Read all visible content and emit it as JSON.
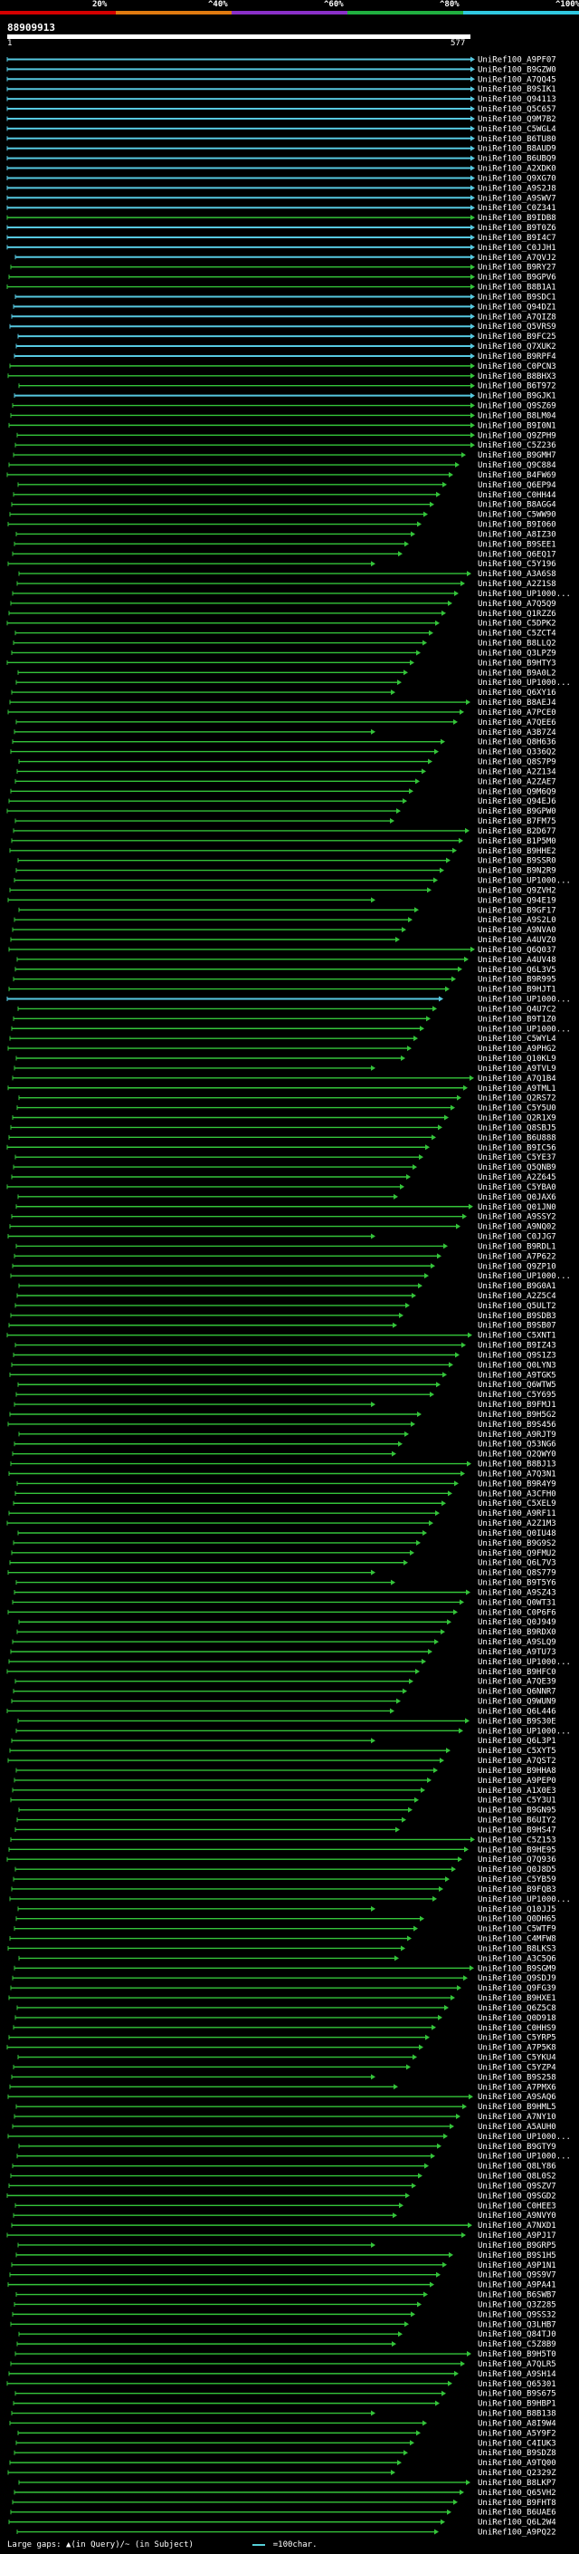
{
  "scale": {
    "labels": [
      "20%",
      "^40%",
      "^60%",
      "^80%",
      "^100%"
    ],
    "colors": [
      "#d40000",
      "#e07a10",
      "#8a30c8",
      "#20b040",
      "#30c8e0"
    ]
  },
  "query": {
    "id": "88909913",
    "start": "1",
    "end": "577"
  },
  "colors": {
    "line": "#34c43a",
    "highlight": "#56c8e0",
    "background": "#000000"
  },
  "hits": [
    {
      "id": "UniRef100_A9PF07",
      "c": 1
    },
    {
      "id": "UniRef100_B9GZW0",
      "c": 1
    },
    {
      "id": "UniRef100_A7QQ45",
      "c": 1
    },
    {
      "id": "UniRef100_B9SIK1",
      "c": 1
    },
    {
      "id": "UniRef100_Q94113",
      "c": 1
    },
    {
      "id": "UniRef100_Q5C657",
      "c": 1
    },
    {
      "id": "UniRef100_Q9M7B2",
      "c": 1
    },
    {
      "id": "UniRef100_C5WGL4",
      "c": 1
    },
    {
      "id": "UniRef100_B6TU80",
      "c": 1
    },
    {
      "id": "UniRef100_B8AUD9",
      "c": 1
    },
    {
      "id": "UniRef100_B6UBQ9",
      "c": 1
    },
    {
      "id": "UniRef100_A2XDK0",
      "c": 1
    },
    {
      "id": "UniRef100_Q9XG70",
      "c": 1
    },
    {
      "id": "UniRef100_A9S2J8",
      "c": 1
    },
    {
      "id": "UniRef100_A9SWV7",
      "c": 1
    },
    {
      "id": "UniRef100_C0Z341",
      "c": 1
    },
    {
      "id": "UniRef100_B9IDB8",
      "c": 0
    },
    {
      "id": "UniRef100_B9T0Z6",
      "c": 1
    },
    {
      "id": "UniRef100_B9I4C7",
      "c": 1
    },
    {
      "id": "UniRef100_C0JJH1",
      "c": 1
    },
    {
      "id": "UniRef100_A7QVJ2",
      "c": 1
    },
    {
      "id": "UniRef100_B9RY27",
      "c": 0
    },
    {
      "id": "UniRef100_B9GPV6",
      "c": 0
    },
    {
      "id": "UniRef100_B8B1A1",
      "c": 0
    },
    {
      "id": "UniRef100_B9SDC1",
      "c": 1
    },
    {
      "id": "UniRef100_Q94DZ1",
      "c": 1
    },
    {
      "id": "UniRef100_A7QIZ8",
      "c": 1
    },
    {
      "id": "UniRef100_Q5VRS9",
      "c": 1
    },
    {
      "id": "UniRef100_B9FC25",
      "c": 1
    },
    {
      "id": "UniRef100_Q7XUK2",
      "c": 1
    },
    {
      "id": "UniRef100_B9RPF4",
      "c": 1
    },
    {
      "id": "UniRef100_C0PCN3",
      "c": 0
    },
    {
      "id": "UniRef100_B8BHX3",
      "c": 0
    },
    {
      "id": "UniRef100_B6T972",
      "c": 0
    },
    {
      "id": "UniRef100_B9GJK1",
      "c": 1
    },
    {
      "id": "UniRef100_Q9SZ69",
      "c": 0
    },
    {
      "id": "UniRef100_B8LM04",
      "c": 0
    },
    {
      "id": "UniRef100_B9I0N1",
      "c": 0
    },
    {
      "id": "UniRef100_Q9ZPH9",
      "c": 0
    },
    {
      "id": "UniRef100_C5Z236",
      "c": 0
    },
    {
      "id": "UniRef100_B9GMH7",
      "c": 0
    },
    {
      "id": "UniRef100_Q9C884",
      "c": 0
    },
    {
      "id": "UniRef100_B4FW69",
      "c": 0
    },
    {
      "id": "UniRef100_Q6EP94",
      "c": 0
    },
    {
      "id": "UniRef100_C0HH44",
      "c": 0
    },
    {
      "id": "UniRef100_B8AGG4",
      "c": 0
    },
    {
      "id": "UniRef100_C5WW90",
      "c": 0
    },
    {
      "id": "UniRef100_B9I060",
      "c": 0
    },
    {
      "id": "UniRef100_A8IZ30",
      "c": 0
    },
    {
      "id": "UniRef100_B9SEE1",
      "c": 0
    },
    {
      "id": "UniRef100_Q6EQ17",
      "c": 0
    },
    {
      "id": "UniRef100_C5Y196",
      "c": 0
    },
    {
      "id": "UniRef100_A3A6S8",
      "c": 0
    },
    {
      "id": "UniRef100_A2Z1S8",
      "c": 0
    },
    {
      "id": "UniRef100_UP1000...",
      "c": 0
    },
    {
      "id": "UniRef100_A7Q5Q9",
      "c": 0
    },
    {
      "id": "UniRef100_Q1RZZ6",
      "c": 0
    },
    {
      "id": "UniRef100_C5DPK2",
      "c": 0
    },
    {
      "id": "UniRef100_C5ZCT4",
      "c": 0
    },
    {
      "id": "UniRef100_B8LLQ2",
      "c": 0
    },
    {
      "id": "UniRef100_Q3LPZ9",
      "c": 0
    },
    {
      "id": "UniRef100_B9HTY3",
      "c": 0
    },
    {
      "id": "UniRef100_B9A0L2",
      "c": 0
    },
    {
      "id": "UniRef100_UP1000...",
      "c": 0
    },
    {
      "id": "UniRef100_Q6XY16",
      "c": 0
    },
    {
      "id": "UniRef100_B8AEJ4",
      "c": 0
    },
    {
      "id": "UniRef100_A7PCE0",
      "c": 0
    },
    {
      "id": "UniRef100_A7QEE6",
      "c": 0
    },
    {
      "id": "UniRef100_A3B7Z4",
      "c": 0
    },
    {
      "id": "UniRef100_Q8H636",
      "c": 0
    },
    {
      "id": "UniRef100_Q336Q2",
      "c": 0
    },
    {
      "id": "UniRef100_Q8S7P9",
      "c": 0
    },
    {
      "id": "UniRef100_A2Z134",
      "c": 0
    },
    {
      "id": "UniRef100_A2ZAE7",
      "c": 0
    },
    {
      "id": "UniRef100_Q9M6Q9",
      "c": 0
    },
    {
      "id": "UniRef100_Q94EJ6",
      "c": 0
    },
    {
      "id": "UniRef100_B9GPW0",
      "c": 0
    },
    {
      "id": "UniRef100_B7FM75",
      "c": 0
    },
    {
      "id": "UniRef100_B2D677",
      "c": 0
    },
    {
      "id": "UniRef100_B1P5M0",
      "c": 0
    },
    {
      "id": "UniRef100_B9HHE2",
      "c": 0
    },
    {
      "id": "UniRef100_B9SSR0",
      "c": 0
    },
    {
      "id": "UniRef100_B9N2R9",
      "c": 0
    },
    {
      "id": "UniRef100_UP1000...",
      "c": 0
    },
    {
      "id": "UniRef100_Q9ZVH2",
      "c": 0
    },
    {
      "id": "UniRef100_Q94E19",
      "c": 0
    },
    {
      "id": "UniRef100_B9GF17",
      "c": 0
    },
    {
      "id": "UniRef100_A9S2L0",
      "c": 0
    },
    {
      "id": "UniRef100_A9NVA0",
      "c": 0
    },
    {
      "id": "UniRef100_A4UVZ0",
      "c": 0
    },
    {
      "id": "UniRef100_Q6Q037",
      "c": 0
    },
    {
      "id": "UniRef100_A4UV48",
      "c": 0
    },
    {
      "id": "UniRef100_Q6L3V5",
      "c": 0
    },
    {
      "id": "UniRef100_B9R995",
      "c": 0
    },
    {
      "id": "UniRef100_B9HJT1",
      "c": 0
    },
    {
      "id": "UniRef100_UP1000...",
      "c": 1
    },
    {
      "id": "UniRef100_Q4U7C2",
      "c": 0
    },
    {
      "id": "UniRef100_B9T1Z0",
      "c": 0
    },
    {
      "id": "UniRef100_UP1000...",
      "c": 0
    },
    {
      "id": "UniRef100_C5WYL4",
      "c": 0
    },
    {
      "id": "UniRef100_A9PHG2",
      "c": 0
    },
    {
      "id": "UniRef100_Q10KL9",
      "c": 0
    },
    {
      "id": "UniRef100_A9TVL9",
      "c": 0
    },
    {
      "id": "UniRef100_A7Q1B4",
      "c": 0
    },
    {
      "id": "UniRef100_A9TML1",
      "c": 0
    },
    {
      "id": "UniRef100_Q2RS72",
      "c": 0
    },
    {
      "id": "UniRef100_C5Y5U0",
      "c": 0
    },
    {
      "id": "UniRef100_Q2R1X9",
      "c": 0
    },
    {
      "id": "UniRef100_Q8SBJ5",
      "c": 0
    },
    {
      "id": "UniRef100_B6U888",
      "c": 0
    },
    {
      "id": "UniRef100_B9IC56",
      "c": 0
    },
    {
      "id": "UniRef100_C5YE37",
      "c": 0
    },
    {
      "id": "UniRef100_Q5QNB9",
      "c": 0
    },
    {
      "id": "UniRef100_A2Z645",
      "c": 0
    },
    {
      "id": "UniRef100_C5YBA0",
      "c": 0
    },
    {
      "id": "UniRef100_Q0JAX6",
      "c": 0
    },
    {
      "id": "UniRef100_Q01JN0",
      "c": 0
    },
    {
      "id": "UniRef100_A9SSY2",
      "c": 0
    },
    {
      "id": "UniRef100_A9NQ02",
      "c": 0
    },
    {
      "id": "UniRef100_C0JJG7",
      "c": 0
    },
    {
      "id": "UniRef100_B9RDL1",
      "c": 0
    },
    {
      "id": "UniRef100_A7P622",
      "c": 0
    },
    {
      "id": "UniRef100_Q9ZP10",
      "c": 0
    },
    {
      "id": "UniRef100_UP1000...",
      "c": 0
    },
    {
      "id": "UniRef100_B9G0A1",
      "c": 0
    },
    {
      "id": "UniRef100_A2Z5C4",
      "c": 0
    },
    {
      "id": "UniRef100_Q5ULT2",
      "c": 0
    },
    {
      "id": "UniRef100_B9SDB3",
      "c": 0
    },
    {
      "id": "UniRef100_B9SB07",
      "c": 0
    },
    {
      "id": "UniRef100_C5XNT1",
      "c": 0
    },
    {
      "id": "UniRef100_B9IZ43",
      "c": 0
    },
    {
      "id": "UniRef100_Q9S1Z3",
      "c": 0
    },
    {
      "id": "UniRef100_Q0LYN3",
      "c": 0
    },
    {
      "id": "UniRef100_A9TGK5",
      "c": 0
    },
    {
      "id": "UniRef100_Q6WTW5",
      "c": 0
    },
    {
      "id": "UniRef100_C5Y695",
      "c": 0
    },
    {
      "id": "UniRef100_B9FMJ1",
      "c": 0
    },
    {
      "id": "UniRef100_B9H5G2",
      "c": 0
    },
    {
      "id": "UniRef100_B9S456",
      "c": 0
    },
    {
      "id": "UniRef100_A9RJT9",
      "c": 0
    },
    {
      "id": "UniRef100_Q53NG6",
      "c": 0
    },
    {
      "id": "UniRef100_Q2QWY0",
      "c": 0
    },
    {
      "id": "UniRef100_B8BJ13",
      "c": 0
    },
    {
      "id": "UniRef100_A7Q3N1",
      "c": 0
    },
    {
      "id": "UniRef100_B9R4Y9",
      "c": 0
    },
    {
      "id": "UniRef100_A3CFH0",
      "c": 0
    },
    {
      "id": "UniRef100_C5XEL9",
      "c": 0
    },
    {
      "id": "UniRef100_A9RF11",
      "c": 0
    },
    {
      "id": "UniRef100_A2Z1M3",
      "c": 0
    },
    {
      "id": "UniRef100_Q0IU48",
      "c": 0
    },
    {
      "id": "UniRef100_B9G9S2",
      "c": 0
    },
    {
      "id": "UniRef100_Q9FMU2",
      "c": 0
    },
    {
      "id": "UniRef100_Q6L7V3",
      "c": 0
    },
    {
      "id": "UniRef100_Q8S779",
      "c": 0
    },
    {
      "id": "UniRef100_B9T5Y6",
      "c": 0
    },
    {
      "id": "UniRef100_A9SZ43",
      "c": 0
    },
    {
      "id": "UniRef100_Q0WT31",
      "c": 0
    },
    {
      "id": "UniRef100_C0P6F6",
      "c": 0
    },
    {
      "id": "UniRef100_Q0J949",
      "c": 0
    },
    {
      "id": "UniRef100_B9RDX0",
      "c": 0
    },
    {
      "id": "UniRef100_A9SLQ9",
      "c": 0
    },
    {
      "id": "UniRef100_A9TU73",
      "c": 0
    },
    {
      "id": "UniRef100_UP1000...",
      "c": 0
    },
    {
      "id": "UniRef100_B9HFC0",
      "c": 0
    },
    {
      "id": "UniRef100_A7QE39",
      "c": 0
    },
    {
      "id": "UniRef100_Q6NNR7",
      "c": 0
    },
    {
      "id": "UniRef100_Q9WUN9",
      "c": 0
    },
    {
      "id": "UniRef100_Q6L446",
      "c": 0
    },
    {
      "id": "UniRef100_B9S30E",
      "c": 0
    },
    {
      "id": "UniRef100_UP1000...",
      "c": 0
    },
    {
      "id": "UniRef100_Q6L3P1",
      "c": 0
    },
    {
      "id": "UniRef100_C5XYT5",
      "c": 0
    },
    {
      "id": "UniRef100_A7QST2",
      "c": 0
    },
    {
      "id": "UniRef100_B9HHA8",
      "c": 0
    },
    {
      "id": "UniRef100_A9PEP0",
      "c": 0
    },
    {
      "id": "UniRef100_A1X0E3",
      "c": 0
    },
    {
      "id": "UniRef100_C5Y3U1",
      "c": 0
    },
    {
      "id": "UniRef100_B9GN95",
      "c": 0
    },
    {
      "id": "UniRef100_B6UIY2",
      "c": 0
    },
    {
      "id": "UniRef100_B9HS47",
      "c": 0
    },
    {
      "id": "UniRef100_C5Z153",
      "c": 0
    },
    {
      "id": "UniRef100_B9HE95",
      "c": 0
    },
    {
      "id": "UniRef100_Q7Q936",
      "c": 0
    },
    {
      "id": "UniRef100_Q0J8D5",
      "c": 0
    },
    {
      "id": "UniRef100_C5YB59",
      "c": 0
    },
    {
      "id": "UniRef100_B9FQB3",
      "c": 0
    },
    {
      "id": "UniRef100_UP1000...",
      "c": 0
    },
    {
      "id": "UniRef100_Q10JJ5",
      "c": 0
    },
    {
      "id": "UniRef100_Q0DH65",
      "c": 0
    },
    {
      "id": "UniRef100_C5WTF9",
      "c": 0
    },
    {
      "id": "UniRef100_C4MFW8",
      "c": 0
    },
    {
      "id": "UniRef100_B8LKS3",
      "c": 0
    },
    {
      "id": "UniRef100_A3C5Q6",
      "c": 0
    },
    {
      "id": "UniRef100_B9SGM9",
      "c": 0
    },
    {
      "id": "UniRef100_Q9SDJ9",
      "c": 0
    },
    {
      "id": "UniRef100_Q9FG39",
      "c": 0
    },
    {
      "id": "UniRef100_B9HXE1",
      "c": 0
    },
    {
      "id": "UniRef100_Q6Z5C8",
      "c": 0
    },
    {
      "id": "UniRef100_Q0D918",
      "c": 0
    },
    {
      "id": "UniRef100_C0HHS9",
      "c": 0
    },
    {
      "id": "UniRef100_C5YRP5",
      "c": 0
    },
    {
      "id": "UniRef100_A7P5K8",
      "c": 0
    },
    {
      "id": "UniRef100_C5YKU4",
      "c": 0
    },
    {
      "id": "UniRef100_C5YZP4",
      "c": 0
    },
    {
      "id": "UniRef100_B9S258",
      "c": 0
    },
    {
      "id": "UniRef100_A7PMX6",
      "c": 0
    },
    {
      "id": "UniRef100_A9SAQ6",
      "c": 0
    },
    {
      "id": "UniRef100_B9HML5",
      "c": 0
    },
    {
      "id": "UniRef100_A7NY10",
      "c": 0
    },
    {
      "id": "UniRef100_A5AUH0",
      "c": 0
    },
    {
      "id": "UniRef100_UP1000...",
      "c": 0
    },
    {
      "id": "UniRef100_B9GTY9",
      "c": 0
    },
    {
      "id": "UniRef100_UP1000...",
      "c": 0
    },
    {
      "id": "UniRef100_Q8LY86",
      "c": 0
    },
    {
      "id": "UniRef100_Q8L0S2",
      "c": 0
    },
    {
      "id": "UniRef100_Q9SZV7",
      "c": 0
    },
    {
      "id": "UniRef100_Q9SGD2",
      "c": 0
    },
    {
      "id": "UniRef100_C0HEE3",
      "c": 0
    },
    {
      "id": "UniRef100_A9NVY0",
      "c": 0
    },
    {
      "id": "UniRef100_A7NXD1",
      "c": 0
    },
    {
      "id": "UniRef100_A9PJ17",
      "c": 0
    },
    {
      "id": "UniRef100_B9GRP5",
      "c": 0
    },
    {
      "id": "UniRef100_B9S1H5",
      "c": 0
    },
    {
      "id": "UniRef100_A9P1N1",
      "c": 0
    },
    {
      "id": "UniRef100_Q9S9V7",
      "c": 0
    },
    {
      "id": "UniRef100_A9PA41",
      "c": 0
    },
    {
      "id": "UniRef100_B6SWB7",
      "c": 0
    },
    {
      "id": "UniRef100_Q3Z285",
      "c": 0
    },
    {
      "id": "UniRef100_Q9SS32",
      "c": 0
    },
    {
      "id": "UniRef100_Q3LHB7",
      "c": 0
    },
    {
      "id": "UniRef100_Q84TJ0",
      "c": 0
    },
    {
      "id": "UniRef100_C5Z8B9",
      "c": 0
    },
    {
      "id": "UniRef100_B9H5T0",
      "c": 0
    },
    {
      "id": "UniRef100_A7QLR5",
      "c": 0
    },
    {
      "id": "UniRef100_A9SH14",
      "c": 0
    },
    {
      "id": "UniRef100_Q65301",
      "c": 0
    },
    {
      "id": "UniRef100_B9S675",
      "c": 0
    },
    {
      "id": "UniRef100_B9HBP1",
      "c": 0
    },
    {
      "id": "UniRef100_B8B138",
      "c": 0
    },
    {
      "id": "UniRef100_A8I9W4",
      "c": 0
    },
    {
      "id": "UniRef100_A5Y9F2",
      "c": 0
    },
    {
      "id": "UniRef100_C4IUK3",
      "c": 0
    },
    {
      "id": "UniRef100_B9SDZ8",
      "c": 0
    },
    {
      "id": "UniRef100_A9TQ00",
      "c": 0
    },
    {
      "id": "UniRef100_Q2329Z",
      "c": 0
    },
    {
      "id": "UniRef100_B8LKP7",
      "c": 0
    },
    {
      "id": "UniRef100_Q65VH2",
      "c": 0
    },
    {
      "id": "UniRef100_B9FHT8",
      "c": 0
    },
    {
      "id": "UniRef100_B6UAE6",
      "c": 0
    },
    {
      "id": "UniRef100_Q6L2W4",
      "c": 0
    },
    {
      "id": "UniRef100_A9PQ22",
      "c": 0
    }
  ],
  "footer": {
    "gaps": "Large gaps: ▲(in Query)/~ (in Subject)",
    "legend": "=100char."
  }
}
